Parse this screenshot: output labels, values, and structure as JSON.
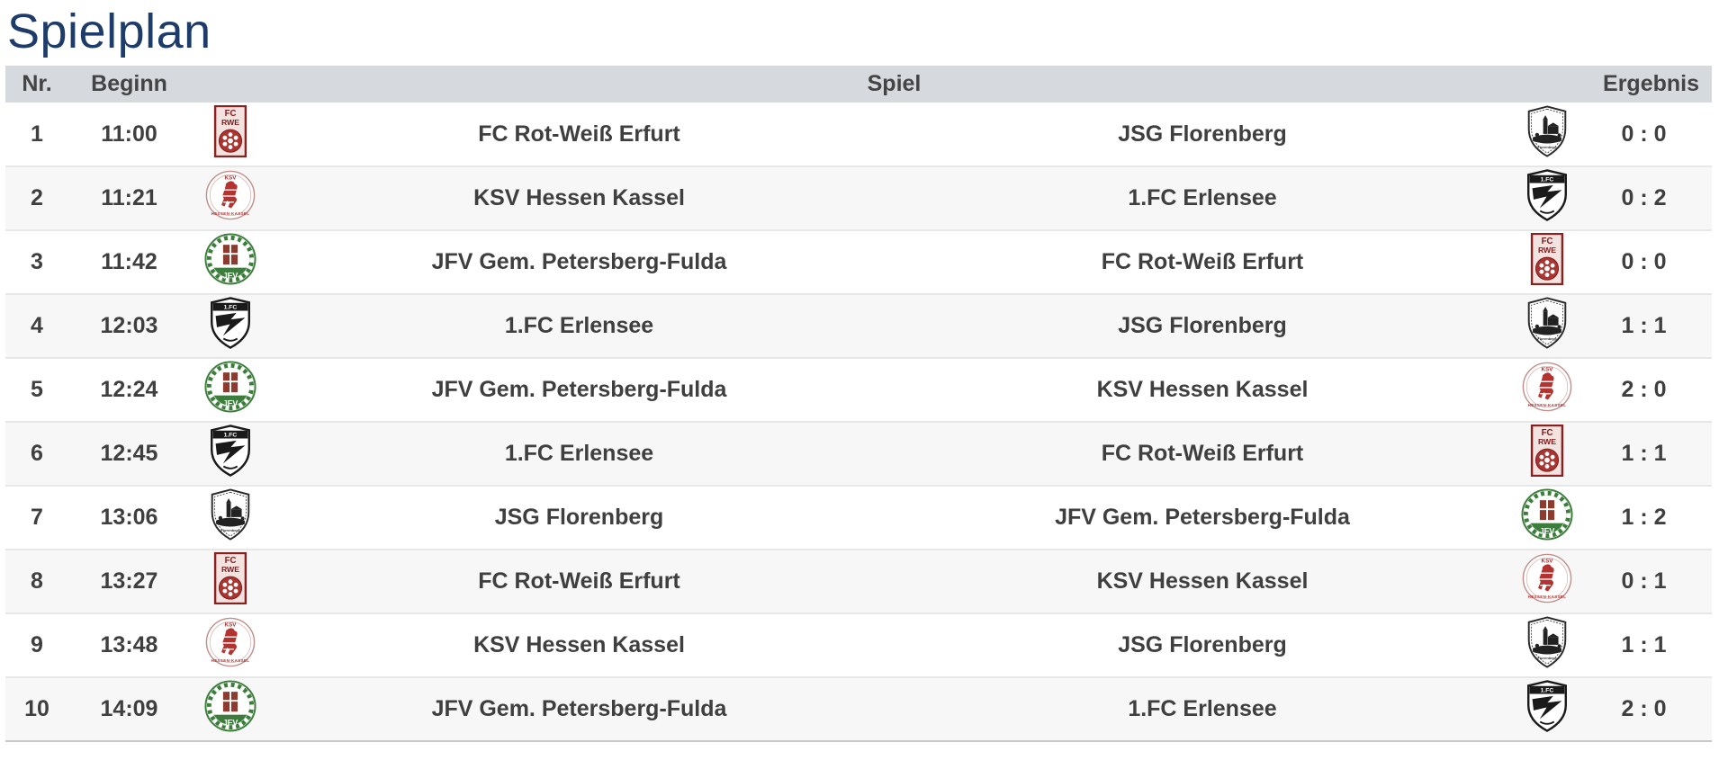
{
  "page": {
    "title": "Spielplan"
  },
  "colors": {
    "title": "#1e3c6a",
    "header_bg": "#d6dade",
    "header_text": "#444444",
    "row_text": "#3f3f3f",
    "row_alt_bg": "#f7f7f8",
    "row_border": "#e7e7e8",
    "crest_red": "#a32f2a",
    "crest_green": "#3c7d3c",
    "crest_black": "#1a1a1a"
  },
  "table": {
    "headers": {
      "nr": "Nr.",
      "beginn": "Beginn",
      "spiel": "Spiel",
      "ergebnis": "Ergebnis"
    },
    "rows": [
      {
        "nr": "1",
        "time": "11:00",
        "home": "FC Rot-Weiß Erfurt",
        "home_logo": "fc-rot-weiss-erfurt",
        "away": "JSG Florenberg",
        "away_logo": "jsg-florenberg",
        "result": "0 : 0"
      },
      {
        "nr": "2",
        "time": "11:21",
        "home": "KSV Hessen Kassel",
        "home_logo": "ksv-hessen-kassel",
        "away": "1.FC Erlensee",
        "away_logo": "fc-erlensee",
        "result": "0 : 2"
      },
      {
        "nr": "3",
        "time": "11:42",
        "home": "JFV Gem. Petersberg-Fulda",
        "home_logo": "jfv-petersberg-fulda",
        "away": "FC Rot-Weiß Erfurt",
        "away_logo": "fc-rot-weiss-erfurt",
        "result": "0 : 0"
      },
      {
        "nr": "4",
        "time": "12:03",
        "home": "1.FC Erlensee",
        "home_logo": "fc-erlensee",
        "away": "JSG Florenberg",
        "away_logo": "jsg-florenberg",
        "result": "1 : 1"
      },
      {
        "nr": "5",
        "time": "12:24",
        "home": "JFV Gem. Petersberg-Fulda",
        "home_logo": "jfv-petersberg-fulda",
        "away": "KSV Hessen Kassel",
        "away_logo": "ksv-hessen-kassel",
        "result": "2 : 0"
      },
      {
        "nr": "6",
        "time": "12:45",
        "home": "1.FC Erlensee",
        "home_logo": "fc-erlensee",
        "away": "FC Rot-Weiß Erfurt",
        "away_logo": "fc-rot-weiss-erfurt",
        "result": "1 : 1"
      },
      {
        "nr": "7",
        "time": "13:06",
        "home": "JSG Florenberg",
        "home_logo": "jsg-florenberg",
        "away": "JFV Gem. Petersberg-Fulda",
        "away_logo": "jfv-petersberg-fulda",
        "result": "1 : 2"
      },
      {
        "nr": "8",
        "time": "13:27",
        "home": "FC Rot-Weiß Erfurt",
        "home_logo": "fc-rot-weiss-erfurt",
        "away": "KSV Hessen Kassel",
        "away_logo": "ksv-hessen-kassel",
        "result": "0 : 1"
      },
      {
        "nr": "9",
        "time": "13:48",
        "home": "KSV Hessen Kassel",
        "home_logo": "ksv-hessen-kassel",
        "away": "JSG Florenberg",
        "away_logo": "jsg-florenberg",
        "result": "1 : 1"
      },
      {
        "nr": "10",
        "time": "14:09",
        "home": "JFV Gem. Petersberg-Fulda",
        "home_logo": "jfv-petersberg-fulda",
        "away": "1.FC Erlensee",
        "away_logo": "fc-erlensee",
        "result": "2 : 0"
      }
    ]
  }
}
